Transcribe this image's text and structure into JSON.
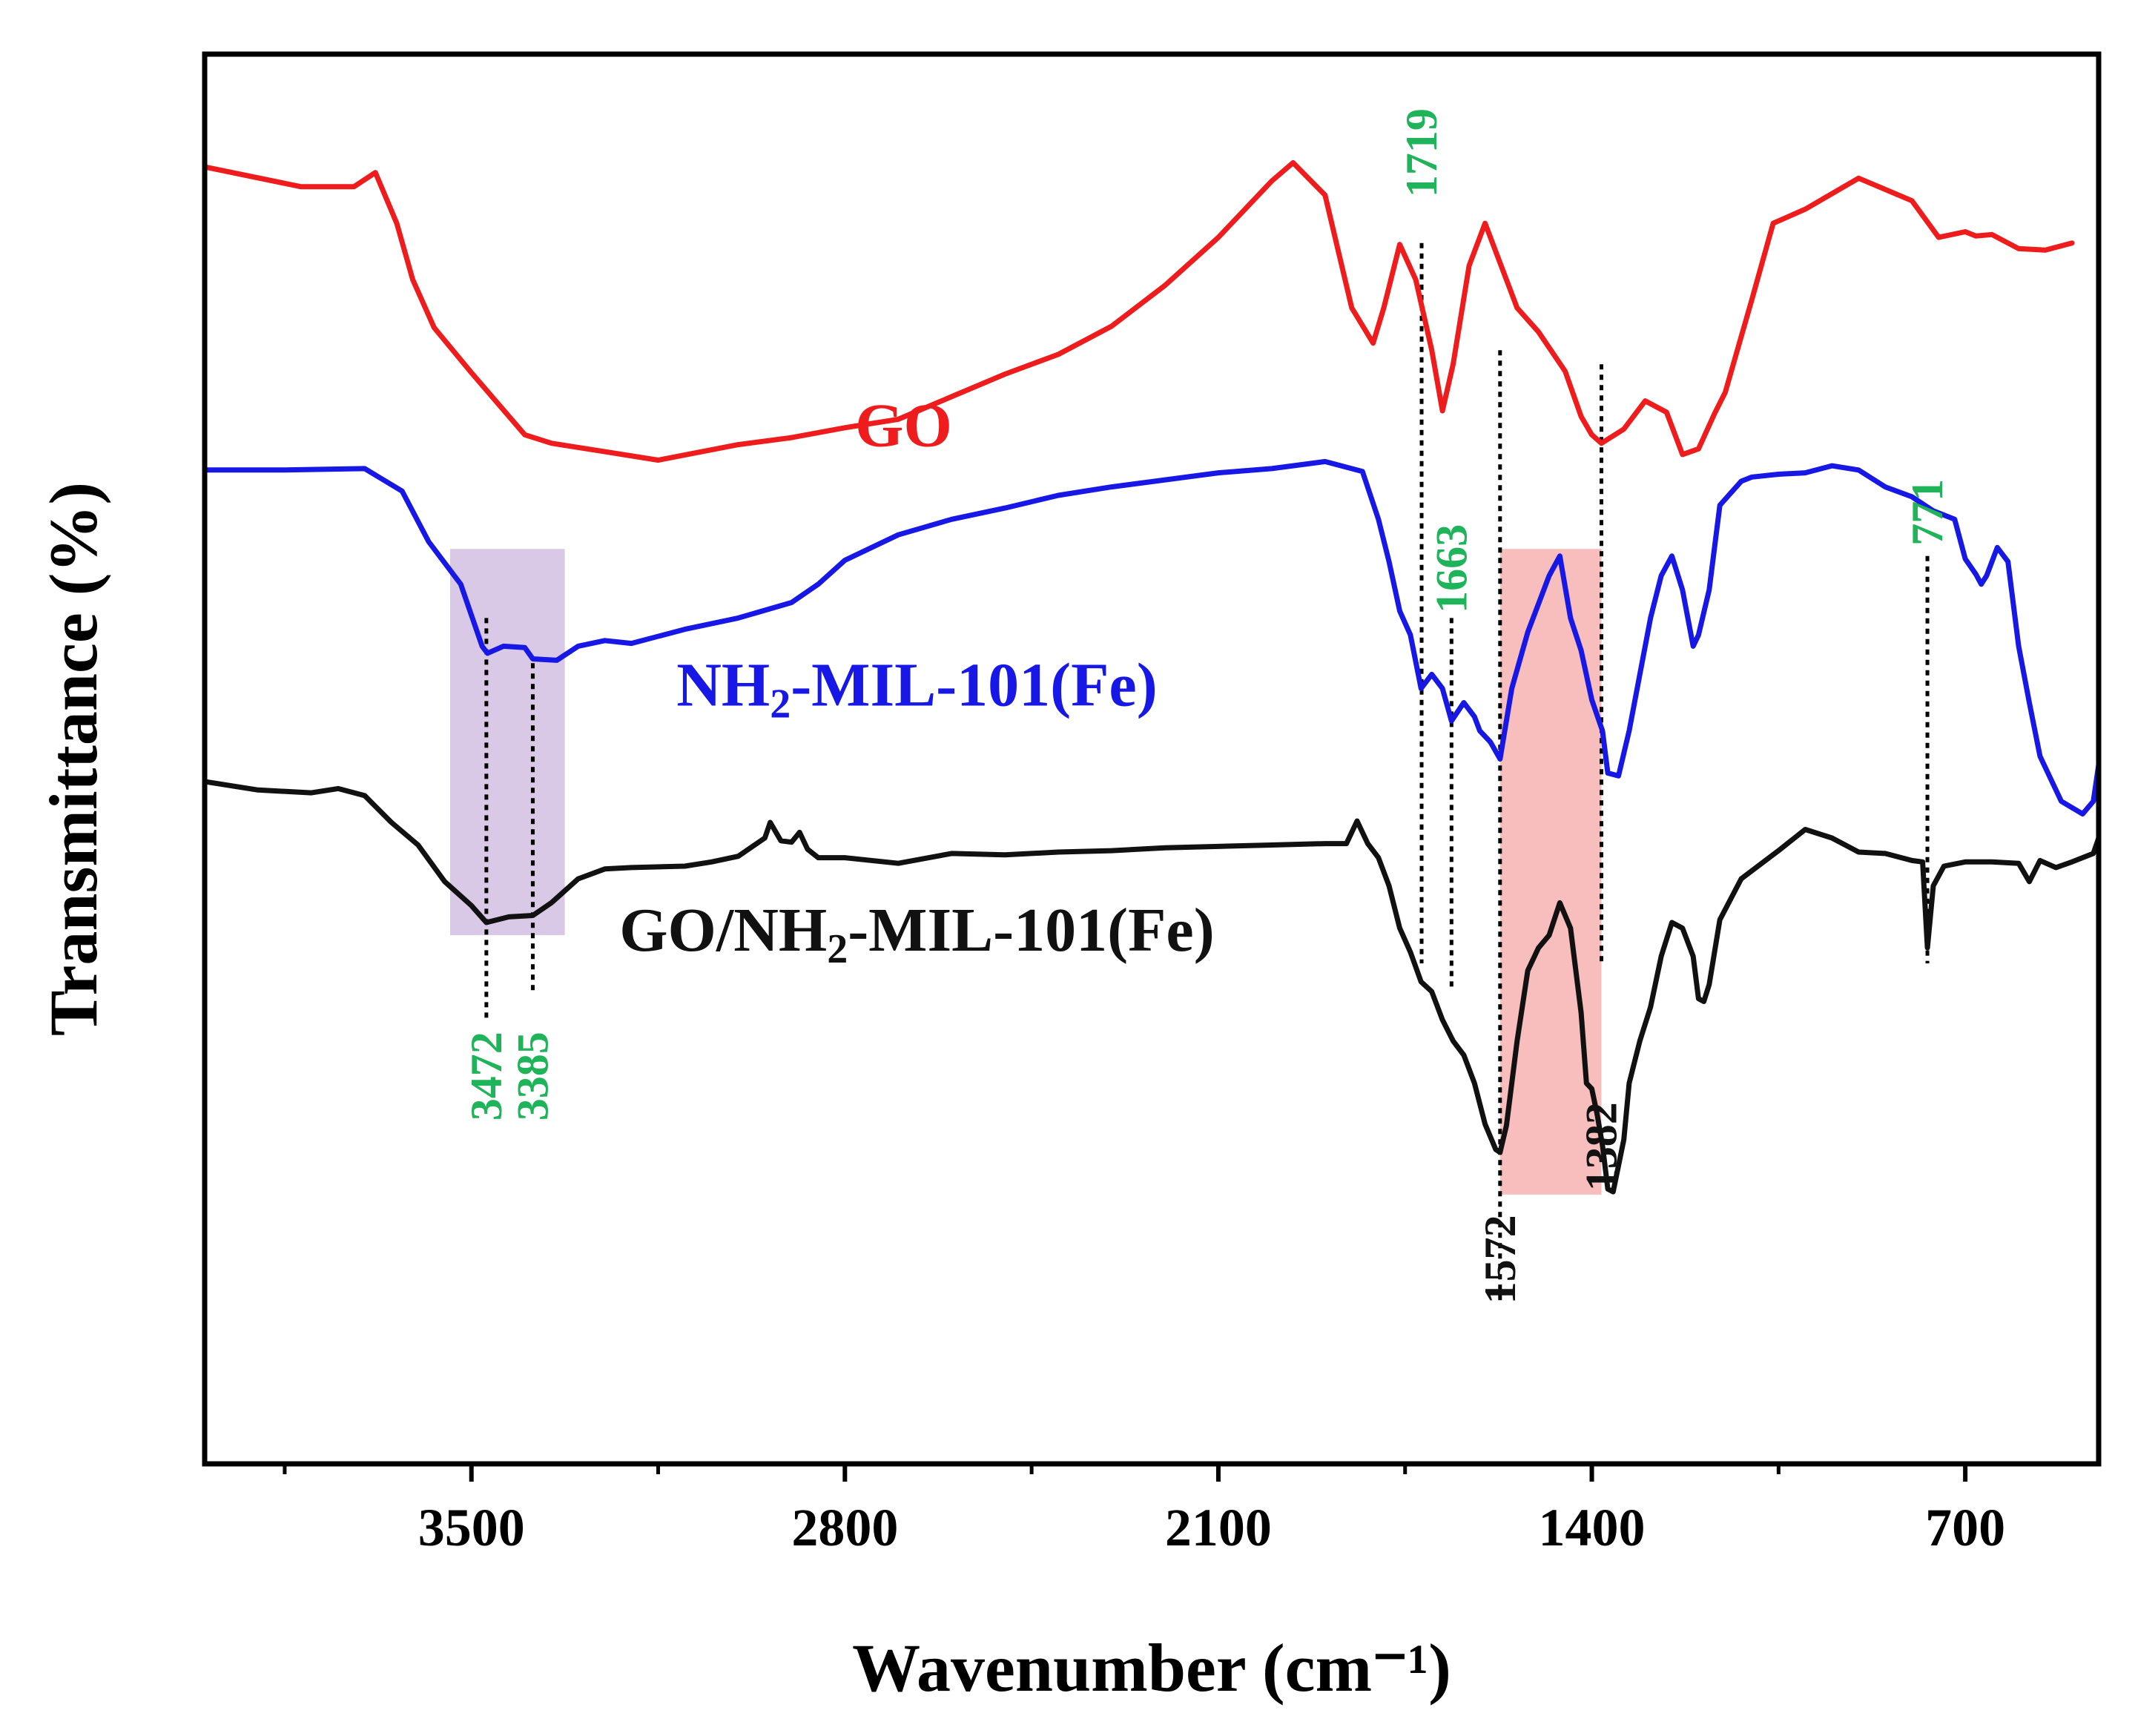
{
  "chart_data": {
    "type": "line",
    "title": "",
    "xlabel": "Wavenumber (cm⁻¹)",
    "ylabel": "Transmittance (%)",
    "x_reversed": true,
    "xlim": [
      4000,
      450
    ],
    "ylim": [
      0,
      100
    ],
    "xticks": [
      3500,
      2800,
      2100,
      1400,
      700
    ],
    "xtick_labels": [
      "3500",
      "2800",
      "2100",
      "1400",
      "700"
    ],
    "minor_xticks": [
      3850,
      3150,
      2450,
      1750,
      1050
    ],
    "grid": false,
    "colors": {
      "GO": "#ee1c1c",
      "NH2": "#1717e6",
      "composite": "#111111",
      "peak_green": "#1fb35a",
      "peak_black": "#111111",
      "purple_band": "#d6c3e3",
      "pink_band": "#f7b6b6"
    },
    "series": [
      {
        "name": "GO",
        "label_parts": [
          "GO"
        ],
        "color": "#ee1c1c",
        "points": [
          [
            4000,
            92
          ],
          [
            3820,
            90.6
          ],
          [
            3720,
            90.6
          ],
          [
            3680,
            91.6
          ],
          [
            3640,
            88
          ],
          [
            3610,
            84
          ],
          [
            3570,
            80.6
          ],
          [
            3500,
            77.4
          ],
          [
            3400,
            73
          ],
          [
            3350,
            72.4
          ],
          [
            3250,
            71.8
          ],
          [
            3150,
            71.2
          ],
          [
            3000,
            72.3
          ],
          [
            2900,
            72.8
          ],
          [
            2800,
            73.5
          ],
          [
            2700,
            74.1
          ],
          [
            2600,
            75.7
          ],
          [
            2500,
            77.3
          ],
          [
            2400,
            78.7
          ],
          [
            2300,
            80.7
          ],
          [
            2200,
            83.6
          ],
          [
            2100,
            87
          ],
          [
            2000,
            91
          ],
          [
            1960,
            92.3
          ],
          [
            1900,
            90
          ],
          [
            1850,
            82
          ],
          [
            1810,
            79.5
          ],
          [
            1790,
            82
          ],
          [
            1760,
            86.5
          ],
          [
            1730,
            84
          ],
          [
            1700,
            79
          ],
          [
            1680,
            74.7
          ],
          [
            1660,
            78
          ],
          [
            1630,
            85
          ],
          [
            1600,
            88
          ],
          [
            1570,
            85
          ],
          [
            1540,
            82
          ],
          [
            1500,
            80.3
          ],
          [
            1450,
            77.5
          ],
          [
            1420,
            74.3
          ],
          [
            1400,
            73
          ],
          [
            1382,
            72.4
          ],
          [
            1340,
            73.4
          ],
          [
            1300,
            75.4
          ],
          [
            1260,
            74.6
          ],
          [
            1230,
            71.6
          ],
          [
            1200,
            72
          ],
          [
            1170,
            74.5
          ],
          [
            1150,
            76
          ],
          [
            1100,
            82.6
          ],
          [
            1060,
            88
          ],
          [
            1000,
            89
          ],
          [
            900,
            91.2
          ],
          [
            800,
            89.6
          ],
          [
            750,
            87
          ],
          [
            700,
            87.4
          ],
          [
            680,
            87.1
          ],
          [
            650,
            87.2
          ],
          [
            600,
            86.2
          ],
          [
            550,
            86.1
          ],
          [
            500,
            86.6
          ]
        ]
      },
      {
        "name": "NH2-MIL-101(Fe)",
        "label_parts": [
          "NH",
          "2",
          "-MIL-101(Fe)"
        ],
        "color": "#1717e6",
        "points": [
          [
            4000,
            70.5
          ],
          [
            3850,
            70.5
          ],
          [
            3700,
            70.6
          ],
          [
            3630,
            69
          ],
          [
            3580,
            65.4
          ],
          [
            3520,
            62.4
          ],
          [
            3480,
            58
          ],
          [
            3470,
            57.5
          ],
          [
            3440,
            58
          ],
          [
            3400,
            57.9
          ],
          [
            3385,
            57.1
          ],
          [
            3340,
            57
          ],
          [
            3300,
            58
          ],
          [
            3250,
            58.4
          ],
          [
            3200,
            58.2
          ],
          [
            3100,
            59.2
          ],
          [
            3000,
            60
          ],
          [
            2900,
            61.1
          ],
          [
            2850,
            62.4
          ],
          [
            2800,
            64.1
          ],
          [
            2700,
            65.9
          ],
          [
            2600,
            67
          ],
          [
            2500,
            67.8
          ],
          [
            2400,
            68.7
          ],
          [
            2300,
            69.3
          ],
          [
            2200,
            69.8
          ],
          [
            2100,
            70.3
          ],
          [
            2000,
            70.6
          ],
          [
            1900,
            71.1
          ],
          [
            1830,
            70.4
          ],
          [
            1800,
            67
          ],
          [
            1780,
            64
          ],
          [
            1760,
            60.5
          ],
          [
            1740,
            58.8
          ],
          [
            1720,
            55
          ],
          [
            1700,
            56
          ],
          [
            1680,
            55
          ],
          [
            1663,
            52.7
          ],
          [
            1640,
            54
          ],
          [
            1620,
            53
          ],
          [
            1610,
            52
          ],
          [
            1590,
            51.2
          ],
          [
            1572,
            50
          ],
          [
            1550,
            55
          ],
          [
            1520,
            59
          ],
          [
            1500,
            61
          ],
          [
            1480,
            63
          ],
          [
            1460,
            64.4
          ],
          [
            1440,
            60
          ],
          [
            1420,
            57.7
          ],
          [
            1400,
            54.2
          ],
          [
            1380,
            52
          ],
          [
            1370,
            49
          ],
          [
            1350,
            48.8
          ],
          [
            1330,
            52
          ],
          [
            1310,
            56
          ],
          [
            1290,
            60
          ],
          [
            1270,
            63
          ],
          [
            1250,
            64.4
          ],
          [
            1230,
            62
          ],
          [
            1210,
            58
          ],
          [
            1200,
            58.8
          ],
          [
            1180,
            62
          ],
          [
            1160,
            68
          ],
          [
            1120,
            69.7
          ],
          [
            1100,
            70
          ],
          [
            1050,
            70.2
          ],
          [
            1000,
            70.3
          ],
          [
            950,
            70.8
          ],
          [
            900,
            70.5
          ],
          [
            850,
            69.3
          ],
          [
            800,
            68.6
          ],
          [
            760,
            67.6
          ],
          [
            720,
            67
          ],
          [
            700,
            64.2
          ],
          [
            680,
            63.1
          ],
          [
            670,
            62.4
          ],
          [
            660,
            63
          ],
          [
            640,
            65
          ],
          [
            620,
            64
          ],
          [
            600,
            58
          ],
          [
            580,
            54
          ],
          [
            560,
            50.2
          ],
          [
            520,
            47
          ],
          [
            480,
            46.1
          ],
          [
            460,
            47
          ],
          [
            450,
            49.6
          ]
        ]
      },
      {
        "name": "GO/NH2-MIL-101(Fe)",
        "label_parts": [
          "GO/NH",
          "2",
          "-MIL-101(Fe)"
        ],
        "color": "#111111",
        "points": [
          [
            4000,
            48.4
          ],
          [
            3900,
            47.8
          ],
          [
            3800,
            47.6
          ],
          [
            3750,
            47.9
          ],
          [
            3700,
            47.4
          ],
          [
            3650,
            45.5
          ],
          [
            3600,
            43.9
          ],
          [
            3550,
            41.3
          ],
          [
            3500,
            39.6
          ],
          [
            3472,
            38.4
          ],
          [
            3430,
            38.8
          ],
          [
            3385,
            38.9
          ],
          [
            3350,
            39.8
          ],
          [
            3300,
            41.5
          ],
          [
            3250,
            42.2
          ],
          [
            3200,
            42.3
          ],
          [
            3100,
            42.4
          ],
          [
            3050,
            42.7
          ],
          [
            3000,
            43.1
          ],
          [
            2950,
            44.4
          ],
          [
            2940,
            45.5
          ],
          [
            2920,
            44.2
          ],
          [
            2900,
            44.1
          ],
          [
            2885,
            44.8
          ],
          [
            2870,
            43.6
          ],
          [
            2850,
            43
          ],
          [
            2800,
            43
          ],
          [
            2700,
            42.6
          ],
          [
            2600,
            43.3
          ],
          [
            2500,
            43.2
          ],
          [
            2400,
            43.4
          ],
          [
            2300,
            43.5
          ],
          [
            2200,
            43.7
          ],
          [
            2100,
            43.8
          ],
          [
            2000,
            43.9
          ],
          [
            1900,
            44
          ],
          [
            1860,
            44
          ],
          [
            1840,
            45.6
          ],
          [
            1820,
            44
          ],
          [
            1800,
            43
          ],
          [
            1780,
            41
          ],
          [
            1760,
            38
          ],
          [
            1740,
            36.3
          ],
          [
            1720,
            34.2
          ],
          [
            1700,
            33.5
          ],
          [
            1680,
            31.5
          ],
          [
            1660,
            30
          ],
          [
            1640,
            29
          ],
          [
            1620,
            27
          ],
          [
            1600,
            24.1
          ],
          [
            1580,
            22.3
          ],
          [
            1572,
            22.1
          ],
          [
            1560,
            24
          ],
          [
            1540,
            30
          ],
          [
            1520,
            35
          ],
          [
            1500,
            36.6
          ],
          [
            1480,
            37.5
          ],
          [
            1460,
            39.8
          ],
          [
            1440,
            38
          ],
          [
            1420,
            32
          ],
          [
            1410,
            27
          ],
          [
            1400,
            26.6
          ],
          [
            1390,
            24.8
          ],
          [
            1380,
            22.6
          ],
          [
            1370,
            19.5
          ],
          [
            1360,
            19.3
          ],
          [
            1340,
            23
          ],
          [
            1330,
            27
          ],
          [
            1310,
            30
          ],
          [
            1290,
            32.4
          ],
          [
            1270,
            36
          ],
          [
            1250,
            38.4
          ],
          [
            1230,
            38
          ],
          [
            1210,
            36
          ],
          [
            1200,
            33
          ],
          [
            1190,
            32.8
          ],
          [
            1180,
            34
          ],
          [
            1160,
            38.6
          ],
          [
            1120,
            41.5
          ],
          [
            1050,
            43.5
          ],
          [
            1000,
            45
          ],
          [
            950,
            44.4
          ],
          [
            900,
            43.4
          ],
          [
            850,
            43.3
          ],
          [
            800,
            42.8
          ],
          [
            780,
            42.7
          ],
          [
            771,
            36.6
          ],
          [
            760,
            41
          ],
          [
            740,
            42.4
          ],
          [
            700,
            42.7
          ],
          [
            650,
            42.7
          ],
          [
            600,
            42.6
          ],
          [
            580,
            41.3
          ],
          [
            560,
            42.8
          ],
          [
            530,
            42.3
          ],
          [
            500,
            42.7
          ],
          [
            460,
            43.3
          ],
          [
            450,
            44.4
          ]
        ]
      }
    ],
    "annotations": {
      "vlines": [
        {
          "label": "1719",
          "x": 1719,
          "y_range": [
            35.5,
            86.6
          ]
        },
        {
          "label": "1663",
          "x": 1663,
          "y_range": [
            33.6,
            60
          ]
        },
        {
          "label": "1572",
          "x": 1572,
          "y_range": [
            11.6,
            79
          ]
        },
        {
          "label": "1382",
          "x": 1382,
          "y_range": [
            35.5,
            78
          ]
        },
        {
          "label": "771",
          "x": 771,
          "y_range": [
            35.5,
            64.4
          ]
        },
        {
          "label": "3472",
          "x": 3472,
          "y_range": [
            31.5,
            60
          ]
        },
        {
          "label": "3385",
          "x": 3385,
          "y_range": [
            33.5,
            56.8
          ]
        }
      ],
      "peak_labels": [
        {
          "text": "1719",
          "x": 1719,
          "y": 93,
          "color": "green"
        },
        {
          "text": "1663",
          "x": 1663,
          "y": 63.5,
          "color": "green"
        },
        {
          "text": "771",
          "x": 771,
          "y": 67.5,
          "color": "green"
        },
        {
          "text": "3472",
          "x": 3472,
          "y": 27.5,
          "color": "green"
        },
        {
          "text": "3385",
          "x": 3385,
          "y": 27.5,
          "color": "green"
        },
        {
          "text": "1572",
          "x": 1572,
          "y": 14.5,
          "color": "black"
        },
        {
          "text": "1382",
          "x": 1382,
          "y": 22.5,
          "color": "black"
        }
      ],
      "shaded_regions": [
        {
          "x_range": [
            3540,
            3325
          ],
          "y_range": [
            37.5,
            64.9
          ],
          "color": "purple"
        },
        {
          "x_range": [
            1572,
            1382
          ],
          "y_range": [
            19.1,
            64.9
          ],
          "color": "pink"
        }
      ],
      "series_labels": [
        {
          "series": "GO",
          "x": 2690,
          "y": 72.2,
          "color": "red"
        },
        {
          "series": "NH2-MIL-101(Fe)",
          "x": 2665,
          "y": 53.8,
          "color": "blue"
        },
        {
          "series": "GO/NH2-MIL-101(Fe)",
          "x": 2665,
          "y": 36.4,
          "color": "black"
        }
      ]
    }
  }
}
